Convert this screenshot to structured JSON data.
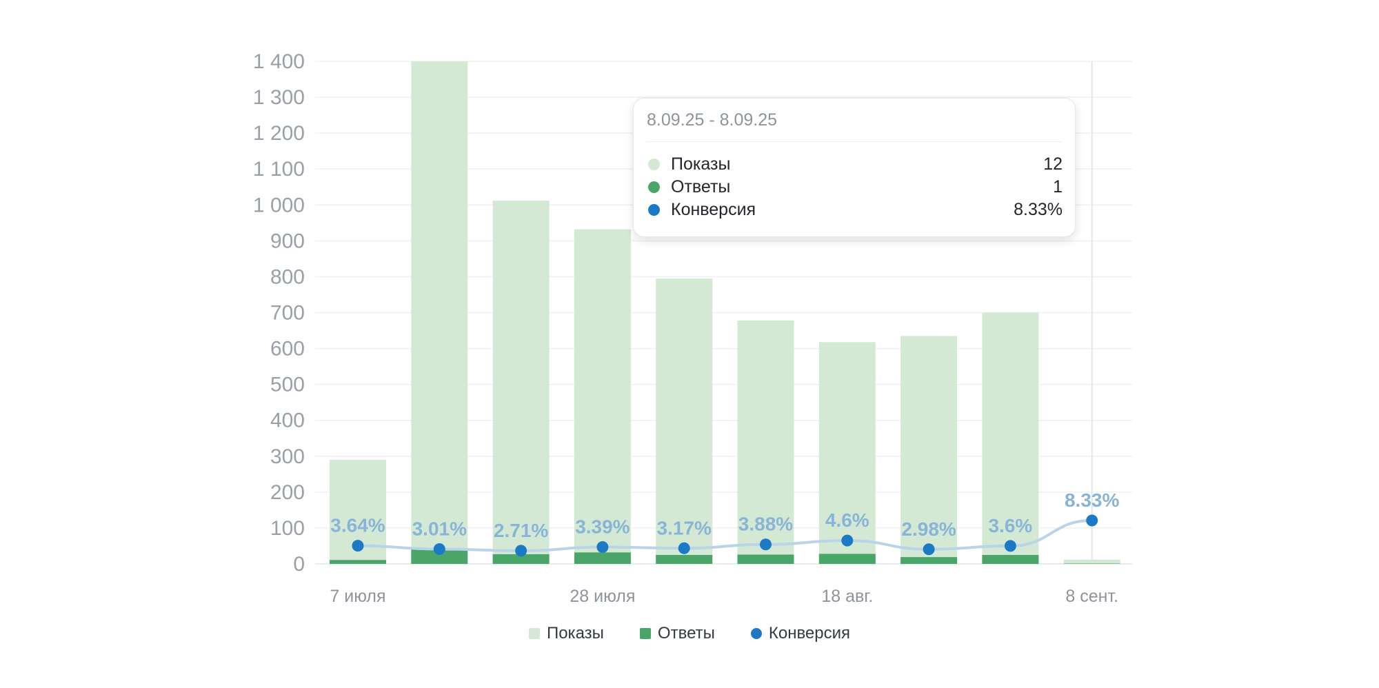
{
  "colors": {
    "impressions": "#d4e9d3",
    "answers": "#4aa569",
    "conversion": "#1c79c6",
    "conversion_line": "#b9d4e8",
    "conversion_label": "#88b4d8",
    "grid": "#eef0f2"
  },
  "chart_data": {
    "type": "bar",
    "ylim": [
      0,
      1400
    ],
    "yticks": [
      0,
      100,
      200,
      300,
      400,
      500,
      600,
      700,
      800,
      900,
      1000,
      1100,
      1200,
      1300,
      1400
    ],
    "ytick_labels": [
      "0",
      "100",
      "200",
      "300",
      "400",
      "500",
      "600",
      "700",
      "800",
      "900",
      "1 000",
      "1 100",
      "1 200",
      "1 300",
      "1 400"
    ],
    "x_tick_labels": [
      {
        "label": "7 июля",
        "index": 0
      },
      {
        "label": "28 июля",
        "index": 3
      },
      {
        "label": "18 авг.",
        "index": 6
      },
      {
        "label": "8 сент.",
        "index": 9
      }
    ],
    "series": [
      {
        "name": "Показы",
        "type": "bar",
        "values": [
          290,
          1400,
          1012,
          932,
          795,
          678,
          618,
          635,
          700,
          12
        ]
      },
      {
        "name": "Ответы",
        "type": "bar",
        "values": [
          11,
          42,
          27,
          32,
          25,
          26,
          28,
          19,
          25,
          1
        ]
      },
      {
        "name": "Конверсия",
        "type": "line",
        "values": [
          3.64,
          3.01,
          2.71,
          3.39,
          3.17,
          3.88,
          4.6,
          2.98,
          3.6,
          8.33
        ],
        "labels": [
          "3.64%",
          "3.01%",
          "2.71%",
          "3.39%",
          "3.17%",
          "3.88%",
          "4.6%",
          "2.98%",
          "3.6%",
          "8.33%"
        ]
      }
    ],
    "legend": [
      "Показы",
      "Ответы",
      "Конверсия"
    ],
    "legend_position": "bottom",
    "grid": true
  },
  "tooltip": {
    "title": "8.09.25 - 8.09.25",
    "rows": [
      {
        "label": "Показы",
        "value": "12"
      },
      {
        "label": "Ответы",
        "value": "1"
      },
      {
        "label": "Конверсия",
        "value": "8.33%"
      }
    ]
  },
  "legend": {
    "impressions": "Показы",
    "answers": "Ответы",
    "conversion": "Конверсия"
  }
}
